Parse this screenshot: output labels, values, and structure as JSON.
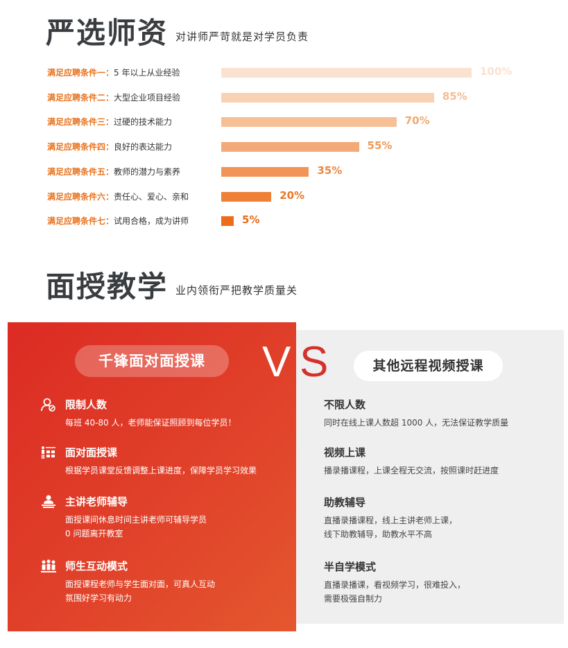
{
  "section1": {
    "title": "严选师资",
    "subtitle": "对讲师严苛就是对学员负责",
    "requirements": [
      {
        "label": "满足应聘条件一：",
        "text": "5 年以上从业经验",
        "percent": 100,
        "percent_label": "100%",
        "bar_color": "#fbe1d0",
        "text_color": "#fbe1d0"
      },
      {
        "label": "满足应聘条件二：",
        "text": "大型企业项目经验",
        "percent": 85,
        "percent_label": "85%",
        "bar_color": "#f9d2b6",
        "text_color": "#f5bc93"
      },
      {
        "label": "满足应聘条件三：",
        "text": "过硬的技术能力",
        "percent": 70,
        "percent_label": "70%",
        "bar_color": "#f7bf96",
        "text_color": "#f2a86e"
      },
      {
        "label": "满足应聘条件四：",
        "text": "良好的表达能力",
        "percent": 55,
        "percent_label": "55%",
        "bar_color": "#f4a978",
        "text_color": "#ef9858"
      },
      {
        "label": "满足应聘条件五：",
        "text": "教师的潜力与素养",
        "percent": 35,
        "percent_label": "35%",
        "bar_color": "#f29458",
        "text_color": "#ec8743"
      },
      {
        "label": "满足应聘条件六：",
        "text": "责任心、爱心、亲和",
        "percent": 20,
        "percent_label": "20%",
        "bar_color": "#ef8038",
        "text_color": "#e97828"
      },
      {
        "label": "满足应聘条件七：",
        "text": "试用合格，成为讲师",
        "percent": 5,
        "percent_label": "5%",
        "bar_color": "#ec6c1c",
        "text_color": "#e86b1a"
      }
    ]
  },
  "section2": {
    "title": "面授教学",
    "subtitle": "业内领衔严把教学质量关"
  },
  "compare": {
    "vs_v": "V",
    "vs_s": "S",
    "left": {
      "pill": "千锋面对面授课",
      "items": [
        {
          "title": "限制人数",
          "desc": [
            "每班 40-80 人，老师能保证照顾到每位学员！"
          ],
          "icon": "user-limit-icon"
        },
        {
          "title": "面对面授课",
          "desc": [
            "根据学员课堂反馈调整上课进度，保障学员学习效果"
          ],
          "icon": "classroom-icon"
        },
        {
          "title": "主讲老师辅导",
          "desc": [
            "面授课间休息时间主讲老师可辅导学员",
            "0 问题离开教室"
          ],
          "icon": "teacher-icon"
        },
        {
          "title": "师生互动模式",
          "desc": [
            "面授课程老师与学生面对面，可真人互动",
            "氛围好学习有动力"
          ],
          "icon": "group-icon"
        }
      ]
    },
    "right": {
      "pill": "其他远程视频授课",
      "items": [
        {
          "title": "不限人数",
          "desc": [
            "同时在线上课人数超 1000 人，无法保证教学质量"
          ]
        },
        {
          "title": "视频上课",
          "desc": [
            "播录播课程，上课全程无交流，按照课时赶进度"
          ]
        },
        {
          "title": "助教辅导",
          "desc": [
            "直播录播课程，线上主讲老师上课，",
            "线下助教辅导，助教水平不高"
          ]
        },
        {
          "title": "半自学模式",
          "desc": [
            "直播录播课，看视频学习，很难投入，",
            "需要极强自制力"
          ]
        }
      ]
    }
  }
}
